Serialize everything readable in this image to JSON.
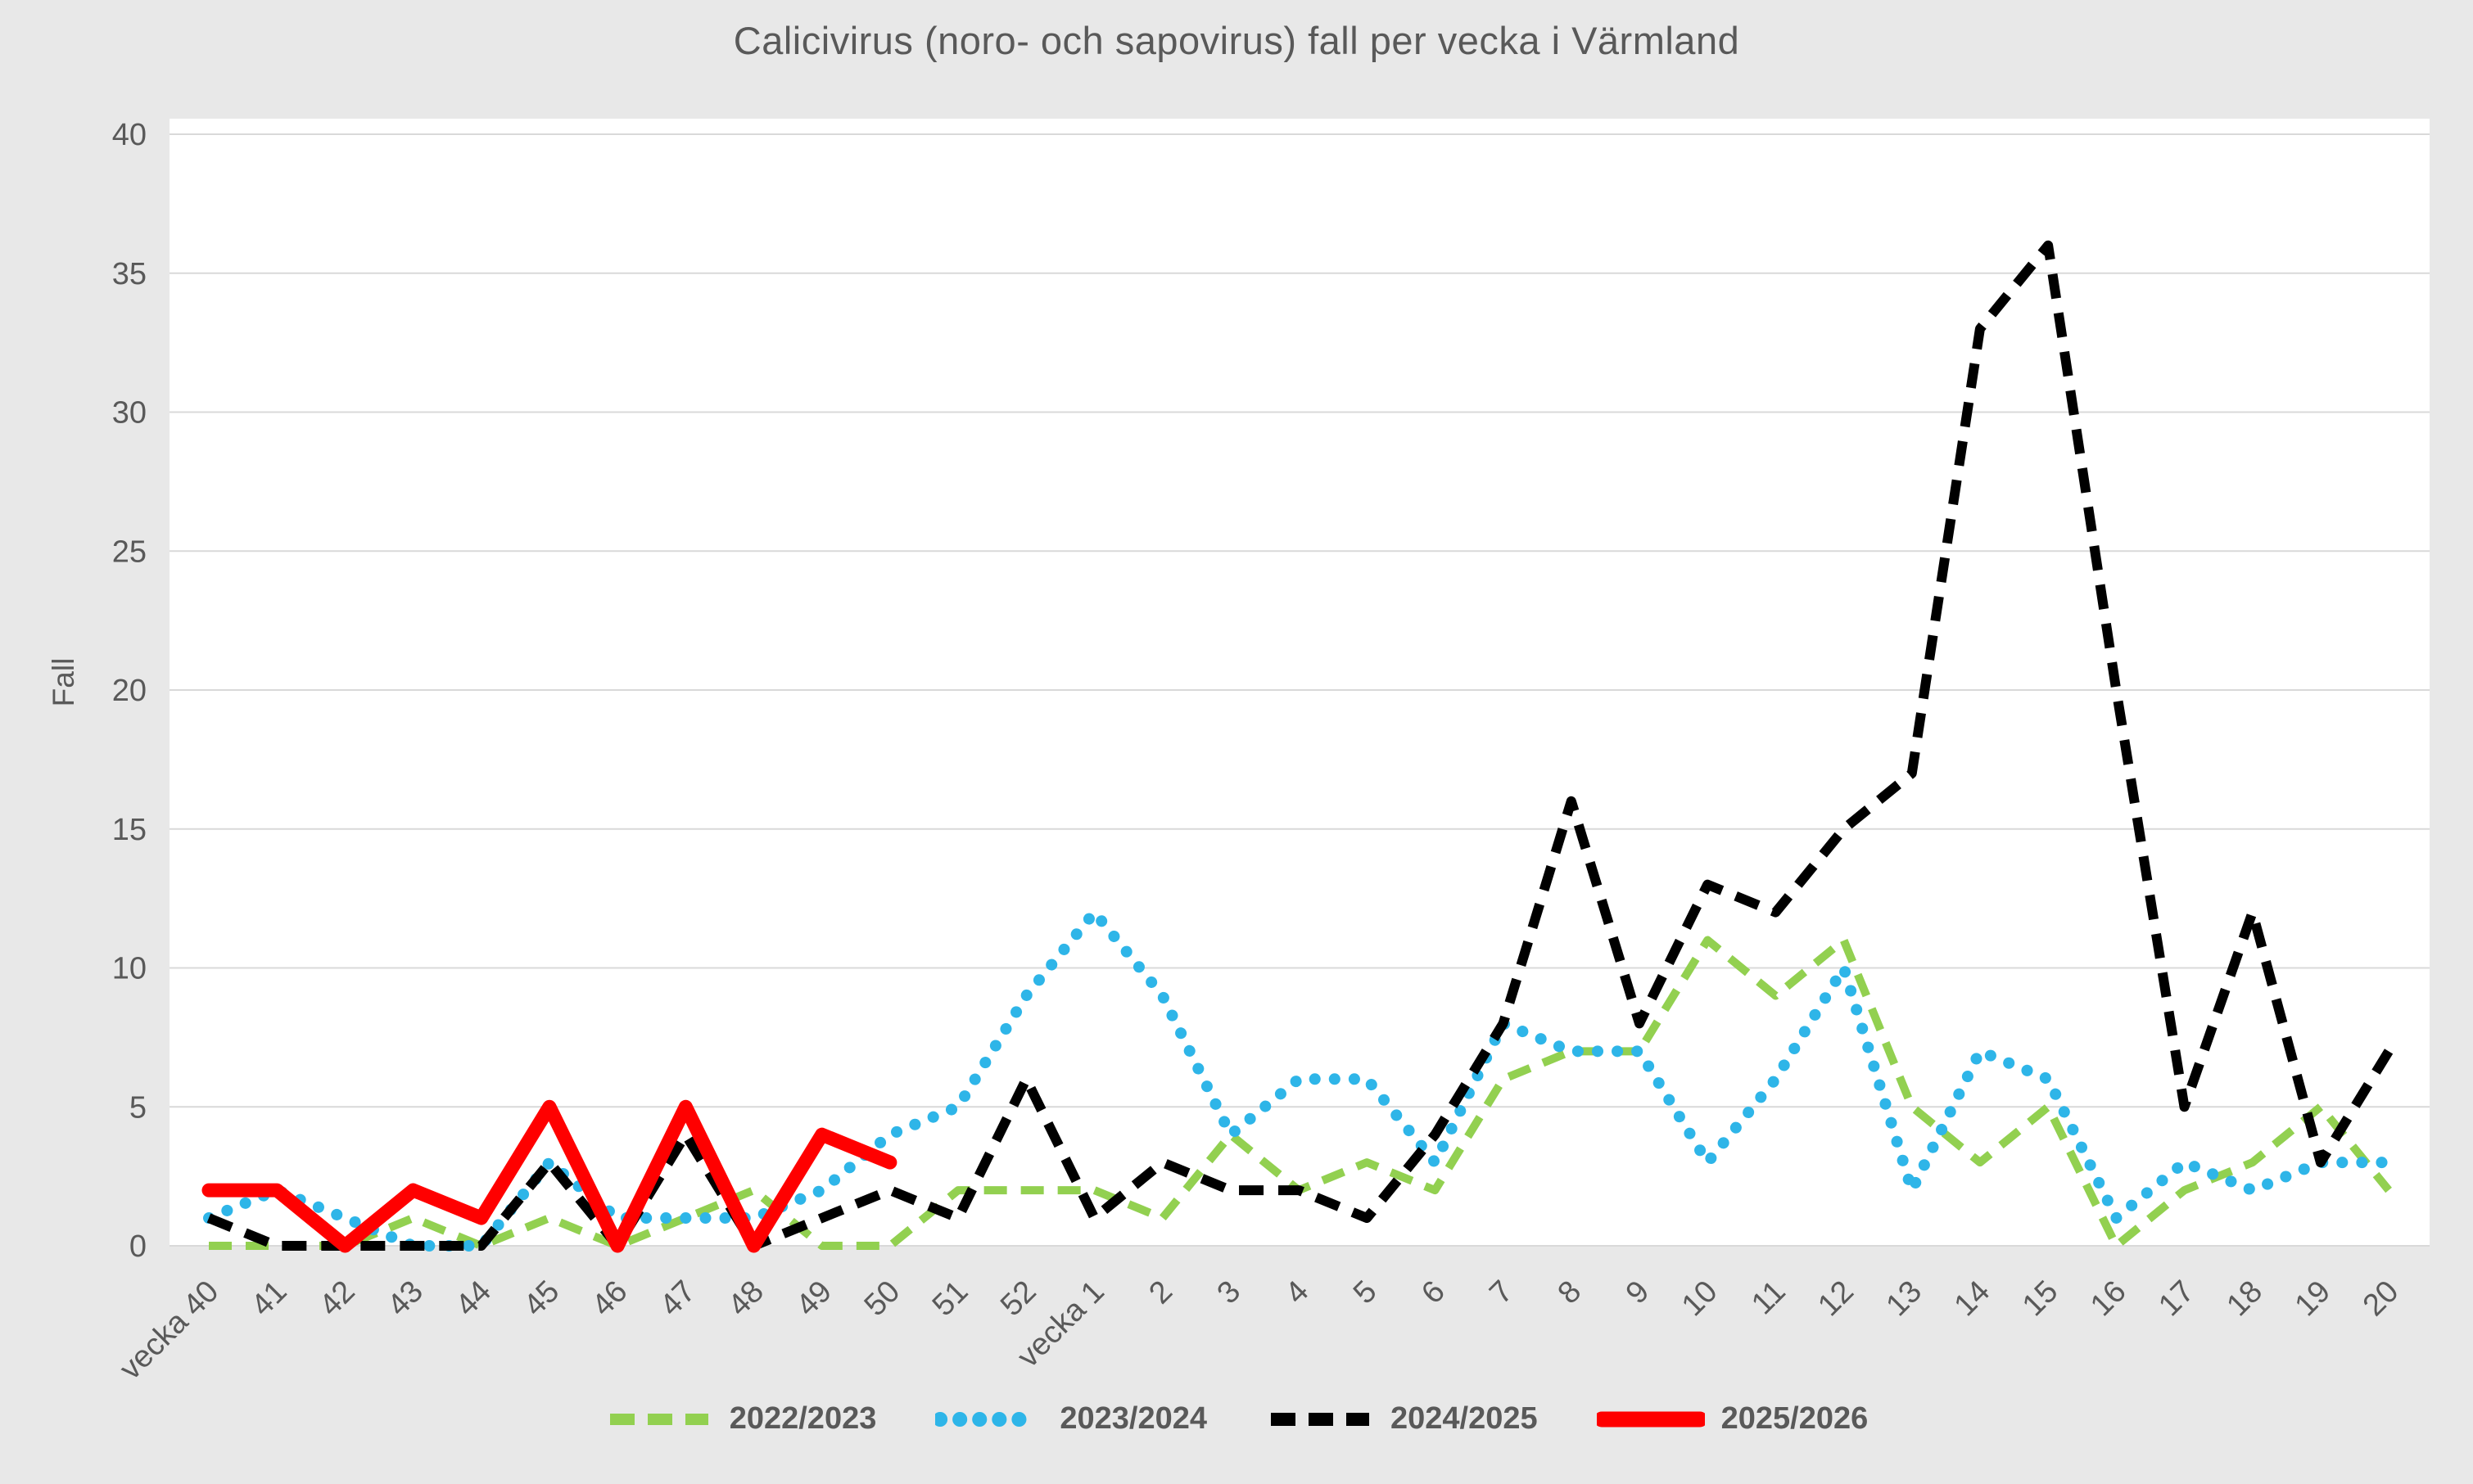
{
  "title": "Calicivirus (noro- och sapovirus) fall per vecka i Värmland",
  "colors": {
    "background": "#e8e8e8",
    "plot_background": "#ffffff",
    "gridline": "#d9d9d9",
    "text": "#595959",
    "series_green": "#92d050",
    "series_blue": "#2eb5e8",
    "series_black": "#000000",
    "series_red": "#ff0000"
  },
  "chart_data": {
    "type": "line",
    "title": "Calicivirus (noro- och sapovirus) fall per vecka i Värmland",
    "xlabel": "",
    "ylabel": "Fall",
    "ylim": [
      0,
      40
    ],
    "y_ticks": [
      0,
      5,
      10,
      15,
      20,
      25,
      30,
      35,
      40
    ],
    "grid": true,
    "legend_position": "bottom",
    "categories": [
      "vecka 40",
      "41",
      "42",
      "43",
      "44",
      "45",
      "46",
      "47",
      "48",
      "49",
      "50",
      "51",
      "52",
      "vecka 1",
      "2",
      "3",
      "4",
      "5",
      "6",
      "7",
      "8",
      "9",
      "10",
      "11",
      "12",
      "13",
      "14",
      "15",
      "16",
      "17",
      "18",
      "19",
      "20"
    ],
    "series": [
      {
        "name": "2022/2023",
        "color": "#92d050",
        "line_style": "dashed",
        "values": [
          0,
          0,
          0,
          1,
          0,
          1,
          0,
          1,
          2,
          0,
          0,
          2,
          2,
          2,
          1,
          4,
          2,
          3,
          2,
          6,
          7,
          7,
          11,
          9,
          11,
          5,
          3,
          5,
          0,
          2,
          3,
          5,
          2
        ]
      },
      {
        "name": "2023/2024",
        "color": "#2eb5e8",
        "line_style": "dotted",
        "values": [
          1,
          2,
          1,
          0,
          0,
          3,
          1,
          1,
          1,
          2,
          4,
          5,
          9,
          12,
          9,
          4,
          6,
          6,
          3,
          8,
          7,
          7,
          3,
          6,
          10,
          2,
          7,
          6,
          1,
          3,
          2,
          3,
          3
        ]
      },
      {
        "name": "2024/2025",
        "color": "#000000",
        "line_style": "dashed-bold",
        "values": [
          1,
          0,
          0,
          0,
          0,
          3,
          0,
          4,
          0,
          1,
          2,
          1,
          6,
          1,
          3,
          2,
          2,
          1,
          4,
          8,
          16,
          8,
          13,
          12,
          15,
          17,
          33,
          36,
          20,
          5,
          12,
          3,
          7
        ]
      },
      {
        "name": "2025/2026",
        "color": "#ff0000",
        "line_style": "solid",
        "values": [
          2,
          2,
          0,
          2,
          1,
          5,
          0,
          5,
          0,
          4,
          3,
          null,
          null,
          null,
          null,
          null,
          null,
          null,
          null,
          null,
          null,
          null,
          null,
          null,
          null,
          null,
          null,
          null,
          null,
          null,
          null,
          null,
          null
        ]
      }
    ]
  }
}
